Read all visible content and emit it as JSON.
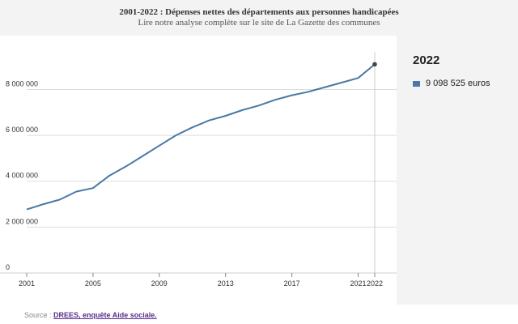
{
  "header": {
    "title": "2001-2022 : Dépenses nettes des départements aux personnes handicapées",
    "subtitle": "Lire notre analyse complète sur le site de La Gazette des communes"
  },
  "panel": {
    "year": "2022",
    "value_text": "9 098 525 euros"
  },
  "source": {
    "prefix": "Source : ",
    "link_text": "DREES, enquête Aide sociale."
  },
  "colors": {
    "line": "#4a78a8",
    "panel_bg": "#f3f3f3",
    "grid": "#dddddd"
  },
  "chart_data": {
    "type": "line",
    "title": "2001-2022 : Dépenses nettes des départements aux personnes handicapées",
    "xlabel": "",
    "ylabel": "",
    "x": [
      2001,
      2002,
      2003,
      2004,
      2005,
      2006,
      2007,
      2008,
      2009,
      2010,
      2011,
      2012,
      2013,
      2014,
      2015,
      2016,
      2017,
      2018,
      2019,
      2020,
      2021,
      2022
    ],
    "series": [
      {
        "values": [
          2770000,
          3000000,
          3200000,
          3550000,
          3700000,
          4250000,
          4650000,
          5100000,
          5550000,
          6000000,
          6350000,
          6650000,
          6850000,
          7100000,
          7300000,
          7550000,
          7750000,
          7900000,
          8100000,
          8300000,
          8500000,
          9098525
        ]
      }
    ],
    "x_ticks": [
      2001,
      2005,
      2009,
      2013,
      2017,
      2021,
      2022
    ],
    "x_tick_labels": [
      "2001",
      "2005",
      "2009",
      "2013",
      "2017",
      "2021",
      "2022"
    ],
    "y_ticks": [
      0,
      2000000,
      4000000,
      6000000,
      8000000
    ],
    "y_tick_labels": [
      "0",
      "2 000 000",
      "4 000 000",
      "6 000 000",
      "8 000 000"
    ],
    "xlim": [
      2001,
      2022
    ],
    "ylim": [
      0,
      9500000
    ],
    "grid": true,
    "highlight": {
      "x": 2022,
      "value": 9098525
    }
  }
}
